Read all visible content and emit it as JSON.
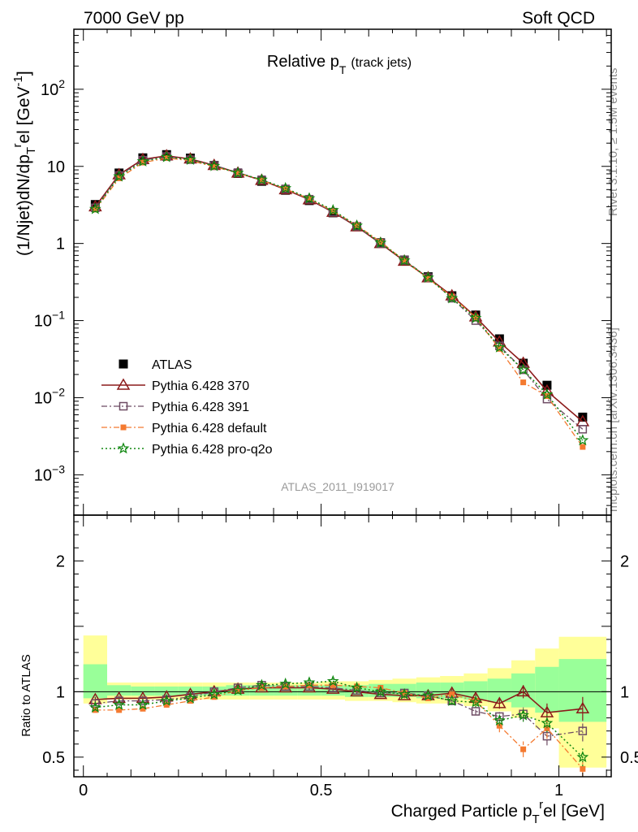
{
  "header": {
    "left": "7000 GeV pp",
    "right": "Soft QCD",
    "plot_title": "Relative p",
    "plot_title_sub": "T",
    "plot_title_suffix": "(track jets)",
    "watermark": "ATLAS_2011_I919017",
    "side_rivet": "Rivet 3.1.10, ≥ 1.5M events",
    "side_mcplots": "mcplots.cern.ch [arXiv:1306.3436]"
  },
  "chart_data": [
    {
      "id": "main",
      "type": "scatter",
      "title": "Relative pT (track jets)",
      "ylabel": "(1/Njet)dN/dp_T^rel [GeV^-1]",
      "yscale": "log",
      "ylim": [
        0.0003,
        600
      ],
      "xlim": [
        -0.02,
        1.11
      ],
      "ytick_labels": [
        {
          "value": 0.001,
          "base": "10",
          "exp": "−3"
        },
        {
          "value": 0.01,
          "base": "10",
          "exp": "−2"
        },
        {
          "value": 0.1,
          "base": "10",
          "exp": "−1"
        },
        {
          "value": 1,
          "base": "1",
          "exp": ""
        },
        {
          "value": 10,
          "base": "10",
          "exp": ""
        },
        {
          "value": 100,
          "base": "10",
          "exp": "2"
        }
      ],
      "x": [
        0.025,
        0.075,
        0.125,
        0.175,
        0.225,
        0.275,
        0.325,
        0.375,
        0.425,
        0.475,
        0.525,
        0.575,
        0.625,
        0.675,
        0.725,
        0.775,
        0.825,
        0.875,
        0.925,
        0.975,
        1.05
      ],
      "series": [
        {
          "name": "ATLAS",
          "color": "#000000",
          "values": [
            3.2,
            8.2,
            12.9,
            14.2,
            12.8,
            10.3,
            8.1,
            6.4,
            4.9,
            3.6,
            2.5,
            1.65,
            1.02,
            0.61,
            0.37,
            0.21,
            0.118,
            0.058,
            0.028,
            0.0145,
            0.0056
          ]
        },
        {
          "name": "Pythia 6.428 370",
          "color": "#8b1a1a",
          "values": [
            3.0,
            7.8,
            12.3,
            13.7,
            12.5,
            10.3,
            8.2,
            6.6,
            5.0,
            3.7,
            2.55,
            1.65,
            1.0,
            0.59,
            0.36,
            0.21,
            0.112,
            0.053,
            0.028,
            0.0122,
            0.0049
          ]
        },
        {
          "name": "Pythia 6.428 391",
          "color": "#6e4c64",
          "values": [
            2.9,
            7.6,
            12.0,
            13.4,
            12.2,
            10.3,
            8.3,
            6.7,
            5.1,
            3.75,
            2.55,
            1.67,
            1.0,
            0.61,
            0.36,
            0.195,
            0.1,
            0.047,
            0.023,
            0.0096,
            0.0039
          ]
        },
        {
          "name": "Pythia 6.428 default",
          "color": "#f47a30",
          "values": [
            2.75,
            7.0,
            11.2,
            12.8,
            11.9,
            9.9,
            8.2,
            6.6,
            5.1,
            3.8,
            2.62,
            1.72,
            1.05,
            0.6,
            0.35,
            0.205,
            0.11,
            0.043,
            0.0158,
            0.0105,
            0.0023
          ]
        },
        {
          "name": "Pythia 6.428 pro-q2o",
          "color": "#118811",
          "values": [
            2.8,
            7.4,
            11.6,
            13.2,
            12.2,
            10.1,
            8.2,
            6.7,
            5.2,
            3.85,
            2.7,
            1.7,
            1.02,
            0.6,
            0.36,
            0.195,
            0.108,
            0.045,
            0.023,
            0.011,
            0.0028
          ]
        }
      ]
    },
    {
      "id": "ratio",
      "type": "scatter",
      "ylabel": "Ratio to ATLAS",
      "xlabel": "Charged Particle p_T^rel [GeV]",
      "ylim": [
        0.35,
        2.35
      ],
      "xlim": [
        -0.02,
        1.11
      ],
      "xtick_labels": [
        {
          "value": 0,
          "label": "0"
        },
        {
          "value": 0.5,
          "label": "0.5"
        },
        {
          "value": 1,
          "label": "1"
        }
      ],
      "ytick_labels": [
        {
          "value": 0.5,
          "label": "0.5"
        },
        {
          "value": 1,
          "label": "1"
        },
        {
          "value": 2,
          "label": "2"
        }
      ],
      "bands": [
        {
          "x0": 0.0,
          "x1": 0.05,
          "g": [
            0.95,
            1.21
          ],
          "y": [
            0.91,
            1.43
          ]
        },
        {
          "x0": 0.05,
          "x1": 0.1,
          "g": [
            0.97,
            1.05
          ],
          "y": [
            0.94,
            1.07
          ]
        },
        {
          "x0": 0.1,
          "x1": 0.15,
          "g": [
            0.97,
            1.04
          ],
          "y": [
            0.94,
            1.07
          ]
        },
        {
          "x0": 0.15,
          "x1": 0.2,
          "g": [
            0.97,
            1.04
          ],
          "y": [
            0.94,
            1.07
          ]
        },
        {
          "x0": 0.2,
          "x1": 0.25,
          "g": [
            0.97,
            1.04
          ],
          "y": [
            0.94,
            1.07
          ]
        },
        {
          "x0": 0.25,
          "x1": 0.3,
          "g": [
            0.97,
            1.04
          ],
          "y": [
            0.94,
            1.07
          ]
        },
        {
          "x0": 0.3,
          "x1": 0.35,
          "g": [
            0.97,
            1.05
          ],
          "y": [
            0.94,
            1.07
          ]
        },
        {
          "x0": 0.35,
          "x1": 0.4,
          "g": [
            0.97,
            1.05
          ],
          "y": [
            0.94,
            1.07
          ]
        },
        {
          "x0": 0.4,
          "x1": 0.45,
          "g": [
            0.97,
            1.05
          ],
          "y": [
            0.94,
            1.07
          ]
        },
        {
          "x0": 0.45,
          "x1": 0.5,
          "g": [
            0.97,
            1.05
          ],
          "y": [
            0.94,
            1.07
          ]
        },
        {
          "x0": 0.5,
          "x1": 0.55,
          "g": [
            0.97,
            1.05
          ],
          "y": [
            0.94,
            1.08
          ]
        },
        {
          "x0": 0.55,
          "x1": 0.6,
          "g": [
            0.96,
            1.05
          ],
          "y": [
            0.93,
            1.08
          ]
        },
        {
          "x0": 0.6,
          "x1": 0.65,
          "g": [
            0.96,
            1.06
          ],
          "y": [
            0.93,
            1.09
          ]
        },
        {
          "x0": 0.65,
          "x1": 0.7,
          "g": [
            0.96,
            1.06
          ],
          "y": [
            0.92,
            1.1
          ]
        },
        {
          "x0": 0.7,
          "x1": 0.75,
          "g": [
            0.95,
            1.07
          ],
          "y": [
            0.91,
            1.11
          ]
        },
        {
          "x0": 0.75,
          "x1": 0.8,
          "g": [
            0.95,
            1.07
          ],
          "y": [
            0.91,
            1.12
          ]
        },
        {
          "x0": 0.8,
          "x1": 0.85,
          "g": [
            0.94,
            1.08
          ],
          "y": [
            0.89,
            1.14
          ]
        },
        {
          "x0": 0.85,
          "x1": 0.9,
          "g": [
            0.92,
            1.1
          ],
          "y": [
            0.85,
            1.18
          ]
        },
        {
          "x0": 0.9,
          "x1": 0.95,
          "g": [
            0.88,
            1.14
          ],
          "y": [
            0.8,
            1.24
          ]
        },
        {
          "x0": 0.95,
          "x1": 1.0,
          "g": [
            0.84,
            1.19
          ],
          "y": [
            0.72,
            1.33
          ]
        },
        {
          "x0": 1.0,
          "x1": 1.1,
          "g": [
            0.77,
            1.25
          ],
          "y": [
            0.42,
            1.42
          ]
        }
      ],
      "series": [
        {
          "name": "Pythia 6.428 370",
          "values": [
            0.94,
            0.95,
            0.95,
            0.96,
            0.98,
            1.0,
            1.02,
            1.03,
            1.03,
            1.03,
            1.02,
            1.0,
            0.98,
            0.97,
            0.97,
            0.99,
            0.95,
            0.91,
            1.0,
            0.84,
            0.87
          ],
          "err": [
            0.02,
            0.02,
            0.02,
            0.02,
            0.02,
            0.02,
            0.02,
            0.02,
            0.02,
            0.02,
            0.02,
            0.02,
            0.02,
            0.02,
            0.02,
            0.03,
            0.03,
            0.04,
            0.05,
            0.07,
            0.09
          ]
        },
        {
          "name": "Pythia 6.428 391",
          "values": [
            0.91,
            0.93,
            0.93,
            0.94,
            0.96,
            1.0,
            1.03,
            1.05,
            1.04,
            1.04,
            1.03,
            1.01,
            0.99,
            0.99,
            0.97,
            0.93,
            0.85,
            0.81,
            0.83,
            0.66,
            0.7
          ],
          "err": [
            0.02,
            0.02,
            0.02,
            0.02,
            0.02,
            0.02,
            0.02,
            0.02,
            0.02,
            0.02,
            0.02,
            0.02,
            0.02,
            0.02,
            0.02,
            0.03,
            0.03,
            0.04,
            0.05,
            0.07,
            0.08
          ]
        },
        {
          "name": "Pythia 6.428 default",
          "values": [
            0.86,
            0.86,
            0.87,
            0.9,
            0.93,
            0.96,
            1.01,
            1.03,
            1.04,
            1.05,
            1.05,
            1.04,
            1.03,
            0.99,
            0.95,
            0.98,
            0.93,
            0.74,
            0.56,
            0.72,
            0.41
          ],
          "err": [
            0.02,
            0.02,
            0.02,
            0.02,
            0.02,
            0.02,
            0.02,
            0.02,
            0.02,
            0.02,
            0.02,
            0.02,
            0.02,
            0.02,
            0.02,
            0.03,
            0.04,
            0.05,
            0.06,
            0.08,
            0.06
          ]
        },
        {
          "name": "Pythia 6.428 pro-q2o",
          "values": [
            0.88,
            0.9,
            0.9,
            0.93,
            0.95,
            0.98,
            1.01,
            1.05,
            1.06,
            1.07,
            1.08,
            1.03,
            1.0,
            0.98,
            0.97,
            0.93,
            0.92,
            0.78,
            0.82,
            0.76,
            0.5
          ],
          "err": [
            0.02,
            0.02,
            0.02,
            0.02,
            0.02,
            0.02,
            0.02,
            0.02,
            0.02,
            0.02,
            0.02,
            0.02,
            0.02,
            0.02,
            0.02,
            0.03,
            0.04,
            0.04,
            0.05,
            0.07,
            0.07
          ]
        }
      ]
    }
  ]
}
